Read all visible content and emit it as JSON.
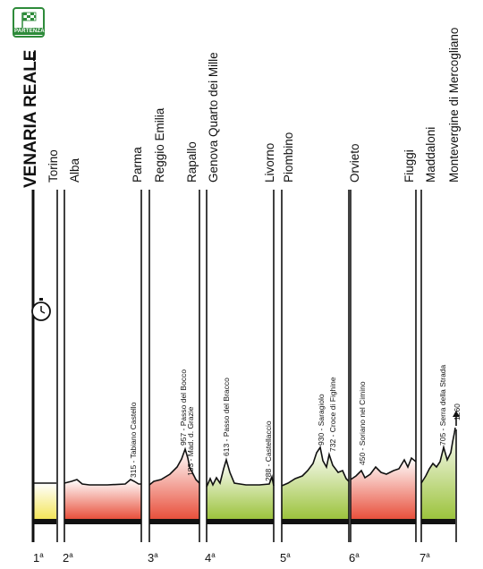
{
  "start": {
    "badge_label": "PARTENZA",
    "title": "VENARIA REALE"
  },
  "towns": [
    "Torino",
    "Alba",
    "Parma",
    "Reggio Emilia",
    "Rapallo",
    "Genova Quarto dei Mille",
    "Livorno",
    "Piombino",
    "Orvieto",
    "Fiuggi",
    "Maddaloni",
    "Montevergine di Mercogliano"
  ],
  "stages": [
    {
      "n": "1",
      "color": "#f3e55a"
    },
    {
      "n": "2",
      "color": "#e8503c"
    },
    {
      "n": "3",
      "color": "#e8503c"
    },
    {
      "n": "4",
      "color": "#9cc33d"
    },
    {
      "n": "5",
      "color": "#9cc33d"
    },
    {
      "n": "6",
      "color": "#e8503c"
    },
    {
      "n": "7",
      "color": "#9cc33d"
    }
  ],
  "stage_suffix": "a",
  "peaks": [
    "315 - Tabiano Castello",
    "957 - Passo del Bocco",
    "183 - Mad. d. Grazie",
    "613 - Passo del Bracco",
    "288 - Castellaccio",
    "930 - Saragiolo",
    "732 - Croce di Fighine",
    "450 - Soriano nel Cimino",
    "705 - Serra della Strada",
    "1260"
  ],
  "icons": {
    "start": "checkered-flag-icon",
    "time_trial": "stopwatch-icon",
    "finish_arrow": "arrow-up-icon"
  }
}
